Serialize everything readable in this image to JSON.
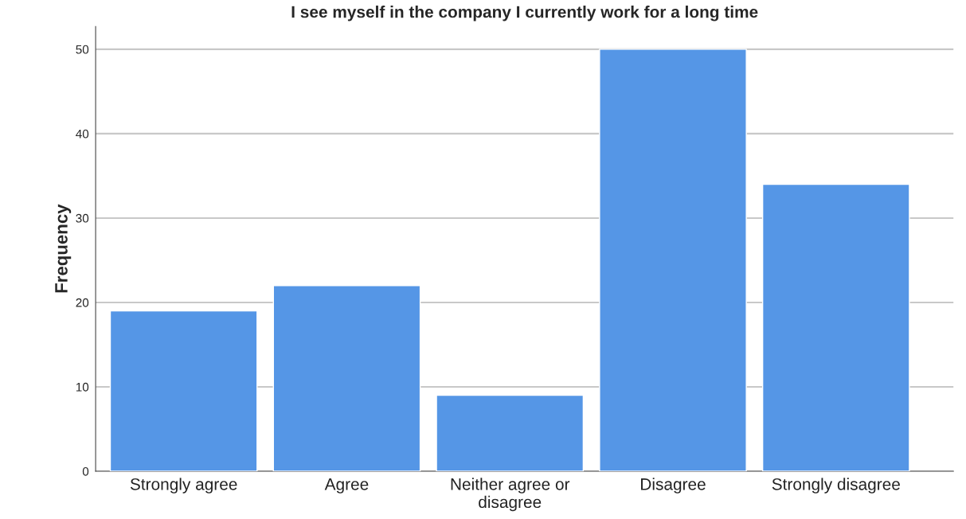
{
  "chart_data": {
    "type": "bar",
    "title": "I see myself in the company I currently work for a long time",
    "ylabel": "Frequency",
    "categories": [
      "Strongly agree",
      "Agree",
      "Neither agree or\ndisagree",
      "Disagree",
      "Strongly disagree"
    ],
    "values": [
      19,
      22,
      9,
      50,
      34
    ],
    "color": "#5596e6",
    "ylim": [
      0,
      52.7
    ],
    "yticks": [
      0,
      10,
      20,
      30,
      40,
      50
    ],
    "grid": "y",
    "legend": false
  }
}
